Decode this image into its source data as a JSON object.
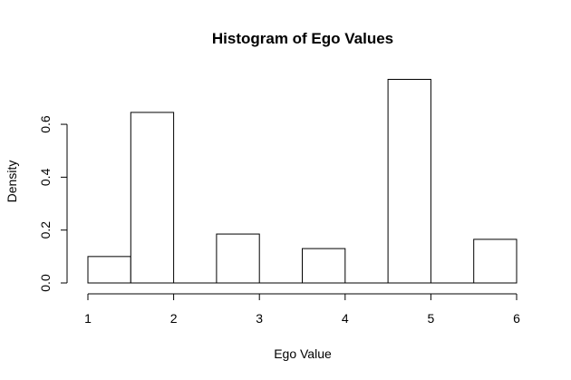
{
  "chart_data": {
    "type": "bar",
    "title": "Histogram of Ego Values",
    "xlabel": "Ego Value",
    "ylabel": "Density",
    "bins": [
      {
        "x0": 1.0,
        "x1": 1.5,
        "value": 0.1
      },
      {
        "x0": 1.5,
        "x1": 2.0,
        "value": 0.645
      },
      {
        "x0": 2.0,
        "x1": 2.5,
        "value": 0.0
      },
      {
        "x0": 2.5,
        "x1": 3.0,
        "value": 0.185
      },
      {
        "x0": 3.0,
        "x1": 3.5,
        "value": 0.0
      },
      {
        "x0": 3.5,
        "x1": 4.0,
        "value": 0.13
      },
      {
        "x0": 4.0,
        "x1": 4.5,
        "value": 0.0
      },
      {
        "x0": 4.5,
        "x1": 5.0,
        "value": 0.77
      },
      {
        "x0": 5.0,
        "x1": 5.5,
        "value": 0.0
      },
      {
        "x0": 5.5,
        "x1": 6.0,
        "value": 0.165
      }
    ],
    "xlim": [
      1,
      6
    ],
    "ylim": [
      0,
      0.77
    ],
    "xticks": [
      "1",
      "2",
      "3",
      "4",
      "5",
      "6"
    ],
    "yticks": [
      "0.0",
      "0.2",
      "0.4",
      "0.6"
    ],
    "grid": false,
    "legend": "none"
  }
}
